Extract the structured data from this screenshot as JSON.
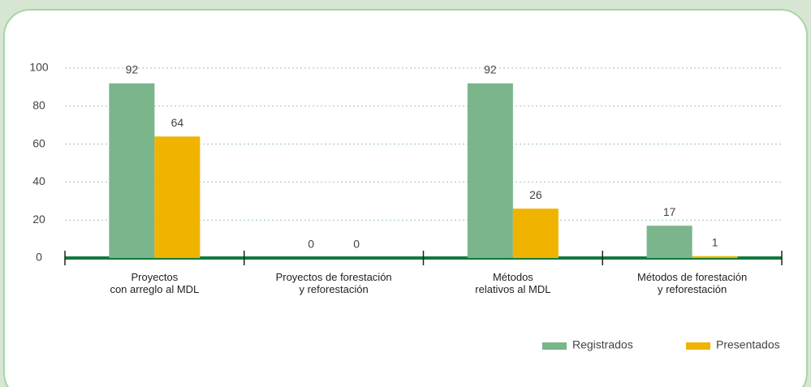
{
  "chart_data": {
    "type": "bar",
    "categories": [
      "Proyectos\ncon arreglo al MDL",
      "Proyectos de forestación\ny reforestación",
      "Métodos\nrelativos al MDL",
      "Métodos de forestación\ny reforestación"
    ],
    "series": [
      {
        "name": "Registrados",
        "color": "#7ab58b",
        "values": [
          92,
          0,
          92,
          17
        ]
      },
      {
        "name": "Presentados",
        "color": "#f0b400",
        "values": [
          64,
          0,
          26,
          1
        ]
      }
    ],
    "ylim": [
      0,
      100
    ],
    "yticks": [
      0,
      20,
      40,
      60,
      80,
      100
    ],
    "grid": true,
    "legend": "bottom-right"
  }
}
